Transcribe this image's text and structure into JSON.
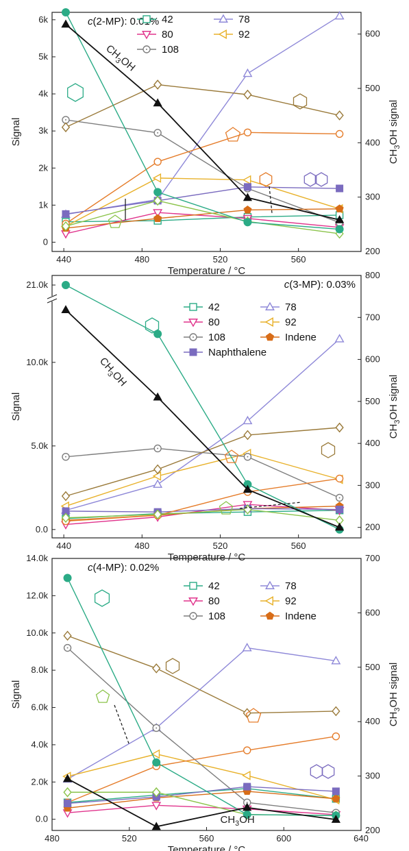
{
  "chart_data": [
    {
      "type": "line",
      "title": "c(2-MP): 0.01%",
      "title_parts": [
        "c",
        "(2-MP): 0.01%"
      ],
      "xlabel": "Temperature / °C",
      "ylabel": "Signal",
      "y2label_parts": [
        "CH",
        "3",
        "OH signal"
      ],
      "xlim": [
        434,
        592
      ],
      "ylim": [
        -250,
        6200
      ],
      "y2lim": [
        200,
        640
      ],
      "x_ticks": [
        440,
        480,
        520,
        560
      ],
      "y_ticks": [
        0,
        1000,
        2000,
        3000,
        4000,
        5000,
        6000
      ],
      "y_tick_labels": [
        "0",
        "1k",
        "2k",
        "3k",
        "4k",
        "5k",
        "6k"
      ],
      "y2_ticks": [
        200,
        300,
        400,
        500,
        600
      ],
      "y2_tick_labels": [
        "200",
        "300",
        "400",
        "500",
        "600"
      ],
      "x": [
        441,
        488,
        534,
        581
      ],
      "series": [
        {
          "name": "42",
          "color": "#2bab86",
          "marker": "square",
          "values": [
            550,
            580,
            680,
            730
          ]
        },
        {
          "name": "78",
          "color": "#8e88d8",
          "marker": "triangle-up",
          "values": [
            750,
            1150,
            4550,
            6100
          ]
        },
        {
          "name": "80",
          "color": "#e0338c",
          "marker": "triangle-down",
          "values": [
            230,
            800,
            640,
            400
          ]
        },
        {
          "name": "92",
          "color": "#e8b12a",
          "marker": "triangle-left",
          "values": [
            430,
            1730,
            1680,
            900
          ]
        },
        {
          "name": "108",
          "color": "#7d7d7d",
          "marker": "circle-dot",
          "values": [
            3300,
            2950,
            1450,
            530
          ]
        },
        {
          "name": "",
          "color": "#9a7a3a",
          "marker": "diamond-open",
          "values": [
            3100,
            4250,
            3980,
            3420
          ]
        },
        {
          "name": "",
          "color": "#e57c2a",
          "marker": "circle-open",
          "values": [
            500,
            2170,
            2960,
            2920
          ]
        },
        {
          "name": "",
          "color": "#d86d18",
          "marker": "pentagon",
          "values": [
            380,
            640,
            870,
            900
          ]
        },
        {
          "name": "",
          "color": "#7a6bbf",
          "marker": "square-filled",
          "values": [
            760,
            1120,
            1490,
            1450
          ]
        },
        {
          "name": "",
          "color": "#8bc34a",
          "marker": "diamond-open",
          "values": [
            430,
            1120,
            560,
            230
          ]
        },
        {
          "name": "",
          "color": "#2bab86",
          "marker": "circle-filled",
          "values": [
            6200,
            1350,
            540,
            350
          ]
        },
        {
          "name": "",
          "color": "#111111",
          "marker": "triangle-up-filled",
          "axis": "right",
          "values": [
            618,
            473,
            299,
            258
          ]
        }
      ],
      "annotations": [
        {
          "text": "CH3OH",
          "text_parts": [
            "CH",
            "3",
            "OH"
          ],
          "at": [
            468,
            4900
          ],
          "rotate": 40
        }
      ]
    },
    {
      "type": "line",
      "title": "c(3-MP): 0.03%",
      "title_parts": [
        "c",
        "(3-MP): 0.03%"
      ],
      "xlabel": "Temperature / °C",
      "ylabel": "Signal",
      "y2label_parts": [
        "CH",
        "3",
        "OH signal"
      ],
      "xlim": [
        434,
        592
      ],
      "ylim": [
        -500,
        15200
      ],
      "y2lim": [
        175,
        800
      ],
      "x_ticks": [
        440,
        480,
        520,
        560
      ],
      "y_ticks": [
        0,
        5000,
        10000
      ],
      "y_tick_labels": [
        "0.0",
        "5.0k",
        "10.0k"
      ],
      "y_break_label": "21.0k",
      "y2_ticks": [
        200,
        300,
        400,
        500,
        600,
        700,
        800
      ],
      "y2_tick_labels": [
        "200",
        "300",
        "400",
        "500",
        "600",
        "700",
        "800"
      ],
      "x": [
        441,
        488,
        534,
        581
      ],
      "series": [
        {
          "name": "42",
          "color": "#2bab86",
          "marker": "square",
          "values": [
            650,
            950,
            1050,
            1150
          ]
        },
        {
          "name": "78",
          "color": "#8e88d8",
          "marker": "triangle-up",
          "values": [
            1150,
            2700,
            6500,
            11400
          ]
        },
        {
          "name": "80",
          "color": "#e0338c",
          "marker": "triangle-down",
          "values": [
            300,
            750,
            1500,
            1150
          ]
        },
        {
          "name": "92",
          "color": "#e8b12a",
          "marker": "triangle-left",
          "values": [
            1400,
            3200,
            4550,
            3000
          ]
        },
        {
          "name": "108",
          "color": "#7d7d7d",
          "marker": "circle-dot",
          "values": [
            4350,
            4850,
            4350,
            1900
          ]
        },
        {
          "name": "Indene",
          "color": "#d86d18",
          "marker": "pentagon",
          "values": [
            550,
            850,
            1250,
            1400
          ]
        },
        {
          "name": "Naphthalene",
          "color": "#7a6bbf",
          "marker": "square-filled",
          "values": [
            1100,
            1050,
            1250,
            1200
          ]
        },
        {
          "name": "",
          "color": "#9a7a3a",
          "marker": "diamond-open",
          "values": [
            2000,
            3600,
            5650,
            6100
          ]
        },
        {
          "name": "",
          "color": "#e57c2a",
          "marker": "circle-open",
          "values": [
            500,
            850,
            2250,
            3050
          ]
        },
        {
          "name": "",
          "color": "#8bc34a",
          "marker": "diamond-open",
          "values": [
            700,
            900,
            1200,
            550
          ]
        },
        {
          "name": "",
          "color": "#2bab86",
          "marker": "circle-filled",
          "values": [
            13800,
            11700,
            2700,
            0
          ]
        },
        {
          "name": "",
          "color": "#111111",
          "marker": "triangle-up-filled",
          "axis": "right",
          "values": [
            718,
            510,
            290,
            200
          ]
        }
      ],
      "annotations": [
        {
          "text": "CH3OH",
          "text_parts": [
            "CH",
            "3",
            "OH"
          ],
          "at": [
            464,
            9300
          ],
          "rotate": 48
        }
      ]
    },
    {
      "type": "line",
      "title": "c(4-MP): 0.02%",
      "title_parts": [
        "c",
        "(4-MP): 0.02%"
      ],
      "xlabel": "Temperature / °C",
      "ylabel": "Signal",
      "y2label_parts": [
        "CH",
        "3",
        "OH signal"
      ],
      "xlim": [
        480,
        640
      ],
      "ylim": [
        -600,
        14000
      ],
      "y2lim": [
        200,
        700
      ],
      "x_ticks": [
        480,
        520,
        560,
        600,
        640
      ],
      "y_ticks": [
        0,
        2000,
        4000,
        6000,
        8000,
        10000,
        12000,
        14000
      ],
      "y_tick_labels": [
        "0.0",
        "2.0k",
        "4.0k",
        "6.0k",
        "8.0k",
        "10.0k",
        "12.0k",
        "14.0k"
      ],
      "y2_ticks": [
        200,
        300,
        400,
        500,
        600,
        700
      ],
      "y2_tick_labels": [
        "200",
        "300",
        "400",
        "500",
        "600",
        "700"
      ],
      "x": [
        488,
        534,
        581,
        627
      ],
      "series": [
        {
          "name": "42",
          "color": "#2bab86",
          "marker": "square",
          "values": [
            900,
            1300,
            1650,
            1100
          ]
        },
        {
          "name": "78",
          "color": "#8e88d8",
          "marker": "triangle-up",
          "values": [
            2150,
            4900,
            9200,
            8500
          ]
        },
        {
          "name": "80",
          "color": "#e0338c",
          "marker": "triangle-down",
          "values": [
            350,
            750,
            550,
            250
          ]
        },
        {
          "name": "92",
          "color": "#e8b12a",
          "marker": "triangle-left",
          "values": [
            2300,
            3500,
            2350,
            1050
          ]
        },
        {
          "name": "108",
          "color": "#7d7d7d",
          "marker": "circle-dot",
          "values": [
            9200,
            4900,
            900,
            350
          ]
        },
        {
          "name": "Indene",
          "color": "#d86d18",
          "marker": "pentagon",
          "values": [
            600,
            1150,
            1500,
            1100
          ]
        },
        {
          "name": "",
          "color": "#9a7a3a",
          "marker": "diamond-open",
          "values": [
            9850,
            8100,
            5700,
            5800
          ]
        },
        {
          "name": "",
          "color": "#e57c2a",
          "marker": "circle-open",
          "values": [
            900,
            2850,
            3700,
            4450
          ]
        },
        {
          "name": "",
          "color": "#7a6bbf",
          "marker": "square-filled",
          "values": [
            850,
            1200,
            1750,
            1500
          ]
        },
        {
          "name": "",
          "color": "#8bc34a",
          "marker": "diamond-open",
          "values": [
            1450,
            1450,
            250,
            200
          ]
        },
        {
          "name": "",
          "color": "#2bab86",
          "marker": "circle-filled",
          "values": [
            12950,
            3050,
            250,
            200
          ]
        },
        {
          "name": "",
          "color": "#111111",
          "marker": "triangle-up-filled",
          "axis": "right",
          "values": [
            295,
            207,
            242,
            220
          ]
        }
      ],
      "annotations": [
        {
          "text": "CH3OH",
          "text_parts": [
            "CH",
            "3",
            "OH"
          ],
          "at": [
            576,
            -200
          ],
          "rotate": 0
        }
      ]
    }
  ]
}
